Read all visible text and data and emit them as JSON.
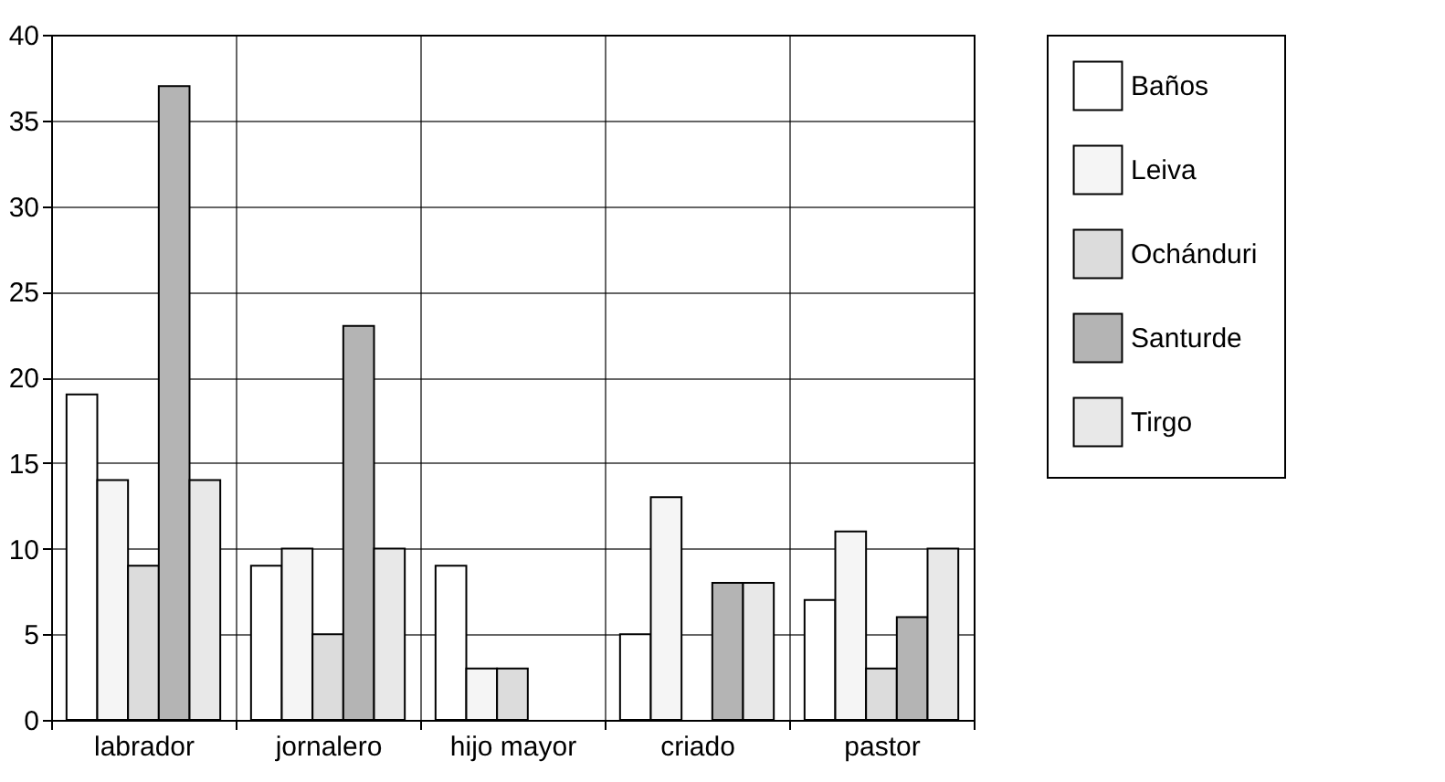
{
  "chart_data": {
    "type": "bar",
    "categories": [
      "labrador",
      "jornalero",
      "hijo mayor",
      "criado",
      "pastor"
    ],
    "series": [
      {
        "name": "Baños",
        "color": "#ffffff",
        "values": [
          19,
          9,
          9,
          5,
          7
        ]
      },
      {
        "name": "Leiva",
        "color": "#f5f5f5",
        "values": [
          14,
          10,
          3,
          13,
          11
        ]
      },
      {
        "name": "Ochánduri",
        "color": "#dcdcdc",
        "values": [
          9,
          5,
          3,
          null,
          3
        ]
      },
      {
        "name": "Santurde",
        "color": "#b4b4b4",
        "values": [
          37,
          23,
          null,
          8,
          6
        ]
      },
      {
        "name": "Tirgo",
        "color": "#e8e8e8",
        "values": [
          14,
          10,
          null,
          8,
          10
        ]
      }
    ],
    "ylim": [
      0,
      40
    ],
    "yticks": [
      0,
      5,
      10,
      15,
      20,
      25,
      30,
      35,
      40
    ],
    "grid": true,
    "legend": "right"
  }
}
